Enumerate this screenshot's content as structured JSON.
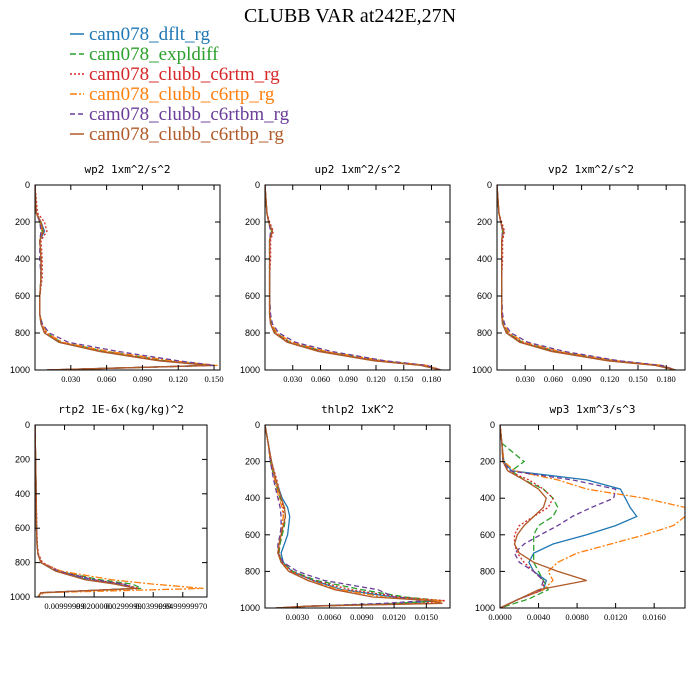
{
  "title": "CLUBB VAR at242E,27N",
  "legend": [
    {
      "name": "cam078_dflt_rg",
      "color": "#1f77b4",
      "dash": ""
    },
    {
      "name": "cam078_expldiff",
      "color": "#2ca02c",
      "dash": "6 3"
    },
    {
      "name": "cam078_clubb_c6rtm_rg",
      "color": "#d62728",
      "dash": "2 2"
    },
    {
      "name": "cam078_clubb_c6rtp_rg",
      "color": "#ff7f0e",
      "dash": "7 2 2 2"
    },
    {
      "name": "cam078_clubb_c6rtbm_rg",
      "color": "#6a3d9a",
      "dash": "5 3"
    },
    {
      "name": "cam078_clubb_c6rtbp_rg",
      "color": "#b05a28",
      "dash": ""
    }
  ],
  "chart_data": [
    {
      "type": "line",
      "title": "wp2   1xm^2/s^2",
      "xlim": [
        0,
        0.155
      ],
      "ylim": [
        1000,
        0
      ],
      "yticks": [
        0,
        200,
        400,
        600,
        800,
        1000
      ],
      "xticks": [
        "0.030",
        "0.060",
        "0.090",
        "0.120",
        "0.150"
      ],
      "xtick_values": [
        0.03,
        0.06,
        0.09,
        0.12,
        0.15
      ],
      "y": [
        0,
        150,
        200,
        250,
        300,
        400,
        500,
        600,
        700,
        750,
        800,
        850,
        900,
        950,
        975,
        1000
      ],
      "series": [
        {
          "values": [
            0,
            0.001,
            0.005,
            0.008,
            0.004,
            0.005,
            0.005,
            0.004,
            0.004,
            0.005,
            0.008,
            0.02,
            0.055,
            0.105,
            0.145,
            0.01
          ]
        },
        {
          "values": [
            0,
            0.001,
            0.004,
            0.006,
            0.004,
            0.005,
            0.005,
            0.004,
            0.004,
            0.006,
            0.01,
            0.022,
            0.06,
            0.11,
            0.15,
            0.01
          ]
        },
        {
          "values": [
            0,
            0.002,
            0.008,
            0.01,
            0.005,
            0.006,
            0.006,
            0.004,
            0.004,
            0.005,
            0.009,
            0.021,
            0.056,
            0.107,
            0.148,
            0.01
          ]
        },
        {
          "values": [
            0,
            0.001,
            0.004,
            0.006,
            0.004,
            0.005,
            0.005,
            0.004,
            0.004,
            0.006,
            0.01,
            0.023,
            0.062,
            0.115,
            0.153,
            0.01
          ]
        },
        {
          "values": [
            0,
            0.001,
            0.004,
            0.005,
            0.004,
            0.004,
            0.005,
            0.004,
            0.004,
            0.006,
            0.012,
            0.028,
            0.07,
            0.12,
            0.15,
            0.01
          ]
        },
        {
          "values": [
            0,
            0.001,
            0.005,
            0.007,
            0.004,
            0.005,
            0.005,
            0.004,
            0.004,
            0.005,
            0.008,
            0.02,
            0.054,
            0.104,
            0.146,
            0.01
          ]
        }
      ]
    },
    {
      "type": "line",
      "title": "up2   1xm^2/s^2",
      "xlim": [
        0,
        0.2
      ],
      "ylim": [
        1000,
        0
      ],
      "yticks": [
        0,
        200,
        400,
        600,
        800,
        1000
      ],
      "xticks": [
        "0.030",
        "0.060",
        "0.090",
        "0.120",
        "0.150",
        "0.180"
      ],
      "xtick_values": [
        0.03,
        0.06,
        0.09,
        0.12,
        0.15,
        0.18
      ],
      "y": [
        0,
        150,
        200,
        250,
        300,
        400,
        500,
        600,
        700,
        750,
        800,
        850,
        900,
        950,
        975,
        1000
      ],
      "series": [
        {
          "values": [
            0,
            0.002,
            0.004,
            0.008,
            0.005,
            0.005,
            0.005,
            0.005,
            0.005,
            0.006,
            0.01,
            0.025,
            0.06,
            0.12,
            0.17,
            0.19
          ]
        },
        {
          "values": [
            0,
            0.002,
            0.004,
            0.007,
            0.005,
            0.005,
            0.005,
            0.005,
            0.005,
            0.007,
            0.012,
            0.027,
            0.064,
            0.125,
            0.172,
            0.19
          ]
        },
        {
          "values": [
            0,
            0.002,
            0.005,
            0.009,
            0.006,
            0.006,
            0.005,
            0.005,
            0.005,
            0.006,
            0.011,
            0.026,
            0.062,
            0.122,
            0.17,
            0.19
          ]
        },
        {
          "values": [
            0,
            0.002,
            0.004,
            0.007,
            0.005,
            0.005,
            0.005,
            0.005,
            0.005,
            0.007,
            0.013,
            0.029,
            0.067,
            0.128,
            0.176,
            0.19
          ]
        },
        {
          "values": [
            0,
            0.002,
            0.004,
            0.006,
            0.005,
            0.005,
            0.005,
            0.005,
            0.006,
            0.008,
            0.015,
            0.033,
            0.072,
            0.13,
            0.175,
            0.19
          ]
        },
        {
          "values": [
            0,
            0.002,
            0.004,
            0.008,
            0.005,
            0.005,
            0.005,
            0.005,
            0.005,
            0.006,
            0.01,
            0.024,
            0.058,
            0.118,
            0.168,
            0.19
          ]
        }
      ]
    },
    {
      "type": "line",
      "title": "vp2   1xm^2/s^2",
      "xlim": [
        0,
        0.2
      ],
      "ylim": [
        1000,
        0
      ],
      "yticks": [
        0,
        200,
        400,
        600,
        800,
        1000
      ],
      "xticks": [
        "0.030",
        "0.060",
        "0.090",
        "0.120",
        "0.150",
        "0.180"
      ],
      "xtick_values": [
        0.03,
        0.06,
        0.09,
        0.12,
        0.15,
        0.18
      ],
      "y": [
        0,
        150,
        200,
        250,
        300,
        400,
        500,
        600,
        700,
        750,
        800,
        850,
        900,
        950,
        975,
        1000
      ],
      "series": [
        {
          "values": [
            0,
            0.002,
            0.004,
            0.007,
            0.005,
            0.005,
            0.005,
            0.005,
            0.005,
            0.006,
            0.01,
            0.025,
            0.06,
            0.12,
            0.17,
            0.19
          ]
        },
        {
          "values": [
            0,
            0.002,
            0.004,
            0.006,
            0.005,
            0.005,
            0.005,
            0.005,
            0.005,
            0.007,
            0.012,
            0.027,
            0.064,
            0.125,
            0.172,
            0.19
          ]
        },
        {
          "values": [
            0,
            0.002,
            0.005,
            0.008,
            0.006,
            0.006,
            0.005,
            0.005,
            0.005,
            0.006,
            0.011,
            0.026,
            0.062,
            0.122,
            0.17,
            0.19
          ]
        },
        {
          "values": [
            0,
            0.002,
            0.004,
            0.006,
            0.005,
            0.005,
            0.005,
            0.005,
            0.005,
            0.007,
            0.013,
            0.029,
            0.067,
            0.128,
            0.176,
            0.19
          ]
        },
        {
          "values": [
            0,
            0.002,
            0.004,
            0.006,
            0.005,
            0.005,
            0.005,
            0.005,
            0.006,
            0.008,
            0.015,
            0.033,
            0.072,
            0.13,
            0.175,
            0.19
          ]
        },
        {
          "values": [
            0,
            0.002,
            0.004,
            0.007,
            0.005,
            0.005,
            0.005,
            0.005,
            0.005,
            0.006,
            0.01,
            0.024,
            0.058,
            0.118,
            0.168,
            0.19
          ]
        }
      ]
    },
    {
      "type": "line",
      "title": "rtp2   1E-6x(kg/kg)^2",
      "xlim": [
        0,
        5.82e-05
      ],
      "ylim": [
        1000,
        0
      ],
      "yticks": [
        0,
        200,
        400,
        600,
        800,
        1000
      ],
      "xticks": [
        "0.00999999",
        "0.0200000",
        "0.0299999",
        "0.0399999",
        "0.0499999970"
      ],
      "xtick_values": [
        1e-05,
        2e-05,
        3e-05,
        4e-05,
        5e-05
      ],
      "y": [
        0,
        200,
        400,
        600,
        700,
        750,
        800,
        850,
        900,
        925,
        950,
        975,
        1000
      ],
      "series": [
        {
          "values": [
            0,
            2e-07,
            4e-07,
            5e-07,
            7e-07,
            1e-06,
            2e-06,
            7e-06,
            1.8e-05,
            2.8e-05,
            3.4e-05,
            2e-06,
            1e-06
          ]
        },
        {
          "values": [
            0,
            2e-07,
            4e-07,
            5e-07,
            7e-07,
            1e-06,
            2e-06,
            8e-06,
            2.2e-05,
            3.3e-05,
            3.6e-05,
            2e-06,
            1e-06
          ]
        },
        {
          "values": [
            0,
            2e-07,
            4e-07,
            6e-07,
            8e-07,
            1.2e-06,
            2.5e-06,
            8.5e-06,
            2e-05,
            3e-05,
            3.5e-05,
            2e-06,
            1e-06
          ]
        },
        {
          "values": [
            0,
            2e-07,
            4e-07,
            5e-07,
            7e-07,
            1e-06,
            2e-06,
            9e-06,
            2.6e-05,
            4e-05,
            5.7e-05,
            3e-06,
            1e-06
          ]
        },
        {
          "values": [
            0,
            2e-07,
            4e-07,
            5e-07,
            7e-07,
            1e-06,
            2e-06,
            8e-06,
            2e-05,
            3e-05,
            3.4e-05,
            2e-06,
            1e-06
          ]
        },
        {
          "values": [
            0,
            2e-07,
            4e-07,
            5e-07,
            7e-07,
            1e-06,
            2e-06,
            7e-06,
            1.7e-05,
            2.7e-05,
            3.4e-05,
            2e-06,
            1e-06
          ]
        }
      ]
    },
    {
      "type": "line",
      "title": "thlp2   1xK^2",
      "xlim": [
        0,
        0.0172
      ],
      "ylim": [
        1000,
        0
      ],
      "yticks": [
        0,
        200,
        400,
        600,
        800,
        1000
      ],
      "xticks": [
        "0.0030",
        "0.0060",
        "0.0090",
        "0.0120",
        "0.0150"
      ],
      "xtick_values": [
        0.003,
        0.006,
        0.009,
        0.012,
        0.015
      ],
      "y": [
        0,
        100,
        200,
        300,
        400,
        450,
        500,
        550,
        600,
        650,
        700,
        750,
        800,
        850,
        900,
        940,
        960,
        975,
        990,
        1000
      ],
      "series": [
        {
          "values": [
            0,
            0.0003,
            0.0006,
            0.001,
            0.0016,
            0.0021,
            0.0023,
            0.0022,
            0.0021,
            0.0018,
            0.0015,
            0.0017,
            0.0025,
            0.0045,
            0.0072,
            0.012,
            0.016,
            0.013,
            0.004,
            0.001
          ]
        },
        {
          "values": [
            0,
            0.0003,
            0.0005,
            0.0009,
            0.0014,
            0.0018,
            0.0019,
            0.0018,
            0.0016,
            0.0014,
            0.0013,
            0.0016,
            0.0026,
            0.0048,
            0.009,
            0.013,
            0.0165,
            0.012,
            0.004,
            0.001
          ]
        },
        {
          "values": [
            0,
            0.0003,
            0.0006,
            0.0011,
            0.0015,
            0.0017,
            0.0017,
            0.0016,
            0.0015,
            0.0013,
            0.0013,
            0.0016,
            0.0025,
            0.0045,
            0.008,
            0.0125,
            0.0168,
            0.0145,
            0.004,
            0.001
          ]
        },
        {
          "values": [
            0,
            0.0003,
            0.0005,
            0.0009,
            0.0013,
            0.0016,
            0.0017,
            0.0016,
            0.0015,
            0.0013,
            0.0012,
            0.0015,
            0.0023,
            0.004,
            0.007,
            0.011,
            0.0165,
            0.0155,
            0.004,
            0.001
          ]
        },
        {
          "values": [
            0,
            0.0003,
            0.0005,
            0.0008,
            0.0012,
            0.0014,
            0.0015,
            0.0015,
            0.0014,
            0.0012,
            0.0012,
            0.0017,
            0.003,
            0.0055,
            0.0105,
            0.012,
            0.015,
            0.011,
            0.004,
            0.001
          ]
        },
        {
          "values": [
            0,
            0.0003,
            0.0006,
            0.001,
            0.0015,
            0.0018,
            0.0019,
            0.0017,
            0.0015,
            0.0013,
            0.0012,
            0.0015,
            0.0022,
            0.004,
            0.0065,
            0.01,
            0.0155,
            0.0165,
            0.004,
            0.001
          ]
        }
      ]
    },
    {
      "type": "line",
      "title": "wp3   1xm^3/s^3",
      "xlim": [
        0,
        0.0192
      ],
      "ylim": [
        1000,
        0
      ],
      "yticks": [
        0,
        200,
        400,
        600,
        800,
        1000
      ],
      "xticks": [
        "0.0000",
        "0.0040",
        "0.0080",
        "0.0120",
        "0.0160"
      ],
      "xtick_values": [
        0,
        0.004,
        0.008,
        0.012,
        0.016
      ],
      "y": [
        0,
        100,
        200,
        250,
        300,
        350,
        400,
        450,
        500,
        550,
        600,
        650,
        700,
        750,
        800,
        850,
        900,
        950,
        1000
      ],
      "series": [
        {
          "values": [
            0,
            0.0002,
            0.0004,
            0.0012,
            0.009,
            0.0125,
            0.013,
            0.0135,
            0.0142,
            0.012,
            0.009,
            0.0055,
            0.0035,
            0.003,
            0.0035,
            0.0048,
            0.0045,
            0.002,
            0
          ]
        },
        {
          "values": [
            0,
            0.0002,
            0.0025,
            0.0012,
            0.0025,
            0.0045,
            0.0055,
            0.006,
            0.0055,
            0.004,
            0.0035,
            0.0035,
            0.0035,
            0.0035,
            0.004,
            0.0045,
            0.005,
            0.003,
            0
          ]
        },
        {
          "values": [
            0,
            0.0002,
            0.0003,
            0.0008,
            0.003,
            0.0045,
            0.0055,
            0.005,
            0.0035,
            0.002,
            0.0015,
            0.0015,
            0.0018,
            0.0025,
            0.0035,
            0.0045,
            0.0045,
            0.002,
            0
          ]
        },
        {
          "values": [
            0,
            0.0002,
            0.0004,
            0.0015,
            0.006,
            0.009,
            0.015,
            0.0192,
            0.0192,
            0.018,
            0.015,
            0.0115,
            0.008,
            0.006,
            0.005,
            0.0055,
            0.0045,
            0.002,
            0
          ]
        },
        {
          "values": [
            0,
            0.0002,
            0.0003,
            0.001,
            0.0075,
            0.012,
            0.0118,
            0.0095,
            0.0075,
            0.006,
            0.0042,
            0.0025,
            0.0015,
            0.002,
            0.0035,
            0.0045,
            0.0042,
            0.002,
            0
          ]
        },
        {
          "values": [
            0,
            0.0002,
            0.0003,
            0.0008,
            0.0025,
            0.004,
            0.0048,
            0.0045,
            0.0035,
            0.0025,
            0.0018,
            0.0015,
            0.002,
            0.0035,
            0.006,
            0.009,
            0.004,
            0.002,
            0
          ]
        }
      ]
    }
  ]
}
